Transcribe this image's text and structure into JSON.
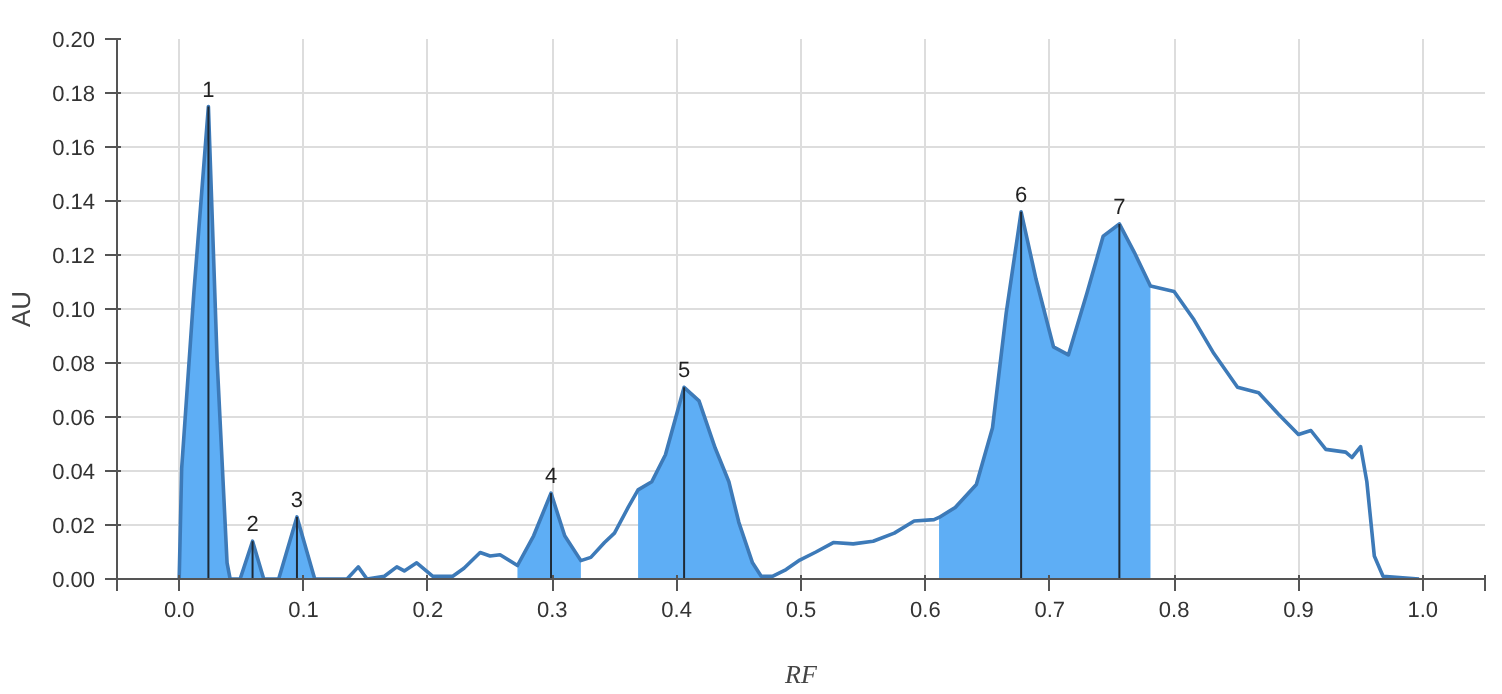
{
  "chart_data": {
    "type": "line",
    "xlabel": "RF",
    "ylabel": "AU",
    "xlim": [
      -0.05,
      1.05
    ],
    "ylim": [
      0,
      0.2
    ],
    "xticks": [
      {
        "value": -0.05,
        "label": null
      },
      {
        "value": 0,
        "label": "0.0"
      },
      {
        "value": 0.1,
        "label": "0.1"
      },
      {
        "value": 0.2,
        "label": "0.2"
      },
      {
        "value": 0.3,
        "label": "0.3"
      },
      {
        "value": 0.4,
        "label": "0.4"
      },
      {
        "value": 0.5,
        "label": "0.5"
      },
      {
        "value": 0.6,
        "label": "0.6"
      },
      {
        "value": 0.7,
        "label": "0.7"
      },
      {
        "value": 0.8,
        "label": "0.8"
      },
      {
        "value": 0.9,
        "label": "0.9"
      },
      {
        "value": 1.0,
        "label": "1.0"
      },
      {
        "value": 1.05,
        "label": null
      }
    ],
    "yticks": [
      {
        "value": 0,
        "label": "0.00"
      },
      {
        "value": 0.02,
        "label": "0.02"
      },
      {
        "value": 0.04,
        "label": "0.04"
      },
      {
        "value": 0.06,
        "label": "0.06"
      },
      {
        "value": 0.08,
        "label": "0.08"
      },
      {
        "value": 0.1,
        "label": "0.10"
      },
      {
        "value": 0.12,
        "label": "0.12"
      },
      {
        "value": 0.14,
        "label": "0.14"
      },
      {
        "value": 0.16,
        "label": "0.16"
      },
      {
        "value": 0.18,
        "label": "0.18"
      },
      {
        "value": 0.2,
        "label": "0.20"
      }
    ],
    "grid": true,
    "marker": "none",
    "line_style": "solid",
    "series": [
      {
        "type": "area",
        "color": "#5eaef5",
        "x": [
          0,
          0.002,
          0.0118,
          0.0235,
          0.0305,
          0.0385,
          0.041
        ],
        "values": [
          0,
          0.041,
          0.106,
          0.175,
          0.081,
          0.006,
          0
        ]
      },
      {
        "type": "area",
        "color": "#5eaef5",
        "x": [
          0.049,
          0.059,
          0.068
        ],
        "values": [
          0,
          0.014,
          0
        ]
      },
      {
        "type": "area",
        "color": "#5eaef5",
        "x": [
          0.08,
          0.0947,
          0.109
        ],
        "values": [
          0,
          0.023,
          0
        ]
      },
      {
        "type": "area",
        "color": "#5eaef5",
        "x": [
          0.272,
          0.285,
          0.299,
          0.31,
          0.323
        ],
        "values": [
          0.005,
          0.016,
          0.0318,
          0.016,
          0.0068
        ]
      },
      {
        "type": "area",
        "color": "#5eaef5",
        "x": [
          0.369,
          0.38,
          0.391,
          0.406,
          0.418,
          0.431,
          0.442,
          0.45,
          0.461,
          0.468
        ],
        "values": [
          0.033,
          0.036,
          0.046,
          0.071,
          0.066,
          0.0485,
          0.036,
          0.021,
          0.006,
          0.001
        ]
      },
      {
        "type": "area",
        "color": "#5eaef5",
        "x": [
          0.611,
          0.624,
          0.641,
          0.654,
          0.665,
          0.677,
          0.689,
          0.703,
          0.715,
          0.73,
          0.743,
          0.756,
          0.768,
          0.781
        ],
        "values": [
          0.0228,
          0.0265,
          0.035,
          0.056,
          0.0985,
          0.136,
          0.111,
          0.086,
          0.083,
          0.106,
          0.127,
          0.1315,
          0.121,
          0.1085
        ]
      },
      {
        "type": "bar",
        "color": "#1e2a36",
        "x": [
          0.0235,
          0.059,
          0.0947,
          0.299,
          0.406,
          0.677,
          0.756
        ],
        "values": [
          0.175,
          0.014,
          0.023,
          0.0318,
          0.071,
          0.136,
          0.1315
        ]
      },
      {
        "color": "#3d7ab8",
        "x": [
          0,
          0.002,
          0.0118,
          0.0235,
          0.0305,
          0.0385,
          0.041,
          0.049,
          0.059,
          0.068,
          0.08,
          0.0947,
          0.109,
          0.135,
          0.144,
          0.151,
          0.165,
          0.175,
          0.181,
          0.191,
          0.204,
          0.22,
          0.229,
          0.242,
          0.25,
          0.258,
          0.272,
          0.285,
          0.299,
          0.31,
          0.323,
          0.331,
          0.342,
          0.35,
          0.361,
          0.369,
          0.38,
          0.391,
          0.406,
          0.418,
          0.431,
          0.442,
          0.45,
          0.461,
          0.468,
          0.477,
          0.488,
          0.499,
          0.512,
          0.526,
          0.542,
          0.558,
          0.575,
          0.591,
          0.607,
          0.611,
          0.624,
          0.641,
          0.654,
          0.665,
          0.677,
          0.689,
          0.703,
          0.715,
          0.73,
          0.743,
          0.756,
          0.768,
          0.781,
          0.8,
          0.816,
          0.832,
          0.851,
          0.868,
          0.884,
          0.9,
          0.91,
          0.922,
          0.938,
          0.943,
          0.95,
          0.955,
          0.961,
          0.968,
          0.997
        ],
        "values": [
          0,
          0.041,
          0.106,
          0.175,
          0.081,
          0.006,
          0,
          0,
          0.014,
          0,
          0,
          0.023,
          0,
          0,
          0.0045,
          0,
          0.001,
          0.0045,
          0.003,
          0.006,
          0.001,
          0.001,
          0.004,
          0.0098,
          0.0085,
          0.009,
          0.005,
          0.016,
          0.0318,
          0.016,
          0.0068,
          0.008,
          0.0135,
          0.017,
          0.0265,
          0.033,
          0.036,
          0.046,
          0.071,
          0.066,
          0.0485,
          0.036,
          0.021,
          0.006,
          0.001,
          0.001,
          0.0035,
          0.007,
          0.01,
          0.0135,
          0.013,
          0.014,
          0.017,
          0.0215,
          0.022,
          0.0228,
          0.0265,
          0.035,
          0.056,
          0.0985,
          0.136,
          0.111,
          0.086,
          0.083,
          0.106,
          0.127,
          0.1315,
          0.121,
          0.1085,
          0.1065,
          0.096,
          0.0835,
          0.071,
          0.069,
          0.061,
          0.0535,
          0.055,
          0.048,
          0.047,
          0.045,
          0.049,
          0.036,
          0.0085,
          0.001,
          0
        ]
      }
    ],
    "annotations": [
      {
        "text": "1",
        "x": 0.0235,
        "y": 0.175
      },
      {
        "text": "2",
        "x": 0.059,
        "y": 0.014
      },
      {
        "text": "3",
        "x": 0.0947,
        "y": 0.023
      },
      {
        "text": "4",
        "x": 0.299,
        "y": 0.0318
      },
      {
        "text": "5",
        "x": 0.406,
        "y": 0.071
      },
      {
        "text": "6",
        "x": 0.677,
        "y": 0.136
      },
      {
        "text": "7",
        "x": 0.756,
        "y": 0.1315
      }
    ]
  }
}
